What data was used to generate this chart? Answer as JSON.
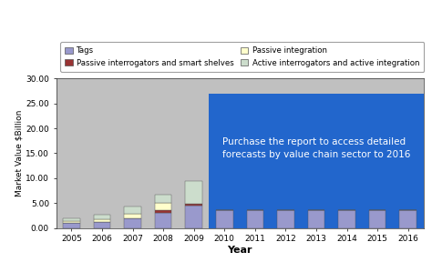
{
  "years": [
    2005,
    2006,
    2007,
    2008,
    2009,
    2010,
    2011,
    2012,
    2013,
    2014,
    2015,
    2016
  ],
  "tags": [
    1.1,
    1.2,
    2.0,
    3.0,
    4.5,
    3.5,
    3.5,
    3.5,
    3.5,
    3.5,
    3.5,
    3.5
  ],
  "passive_interrogators": [
    0.0,
    0.0,
    0.0,
    0.5,
    0.35,
    0.0,
    0.0,
    0.0,
    0.0,
    0.0,
    0.0,
    0.0
  ],
  "passive_integration": [
    0.3,
    0.5,
    0.8,
    1.5,
    0.0,
    0.0,
    0.0,
    0.0,
    0.0,
    0.0,
    0.0,
    0.0
  ],
  "active_integration": [
    0.6,
    1.0,
    1.5,
    1.7,
    4.5,
    0.0,
    0.0,
    0.0,
    0.0,
    0.0,
    0.0,
    0.0
  ],
  "color_tags": "#9999cc",
  "color_passive_interrog": "#993333",
  "color_passive_integr": "#ffffcc",
  "color_active_integr": "#ccddcc",
  "color_background_gray": "#c0c0c0",
  "color_blue_overlay": "#2266cc",
  "ylim": [
    0,
    30
  ],
  "yticks": [
    0.0,
    5.0,
    10.0,
    15.0,
    20.0,
    25.0,
    30.0
  ],
  "xlabel": "Year",
  "ylabel": "Market Value $Billion",
  "overlay_text_line1": "Purchase the report to access detailed",
  "overlay_text_line2": "forecasts by value chain sector to 2016",
  "legend_labels": [
    "Tags",
    "Passive interrogators and smart shelves",
    "Passive integration",
    "Active interrogators and active integration"
  ]
}
